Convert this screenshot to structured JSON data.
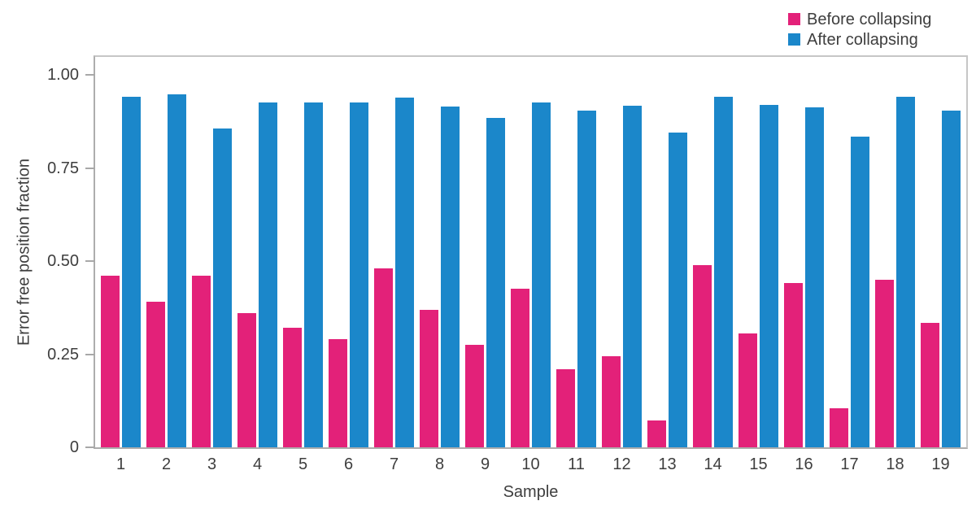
{
  "colors": {
    "before": "#e32179",
    "after": "#1b87ca",
    "text": "#3e3e3e",
    "axis_border": "#c6c6c6",
    "tick": "#a8a8a8",
    "background": "#ffffff"
  },
  "legend": {
    "items": [
      {
        "label": "Before collapsing",
        "color": "#e32179"
      },
      {
        "label": "After collapsing",
        "color": "#1b87ca"
      }
    ]
  },
  "chart_data": {
    "type": "bar",
    "title": "",
    "xlabel": "Sample",
    "ylabel": "Error free position fraction",
    "categories": [
      "1",
      "2",
      "3",
      "4",
      "5",
      "6",
      "7",
      "8",
      "9",
      "10",
      "11",
      "12",
      "13",
      "14",
      "15",
      "16",
      "17",
      "18",
      "19"
    ],
    "series": [
      {
        "name": "Before collapsing",
        "color": "#e32179",
        "values": [
          0.46,
          0.39,
          0.46,
          0.36,
          0.32,
          0.29,
          0.48,
          0.37,
          0.275,
          0.425,
          0.21,
          0.245,
          0.073,
          0.49,
          0.305,
          0.44,
          0.105,
          0.45,
          0.335
        ]
      },
      {
        "name": "After collapsing",
        "color": "#1b87ca",
        "values": [
          0.94,
          0.947,
          0.856,
          0.926,
          0.926,
          0.926,
          0.938,
          0.915,
          0.885,
          0.926,
          0.905,
          0.917,
          0.845,
          0.941,
          0.92,
          0.913,
          0.835,
          0.941,
          0.905
        ]
      }
    ],
    "ylim": [
      0,
      1.05
    ],
    "yticks": [
      {
        "value": 0.0,
        "label": "0"
      },
      {
        "value": 0.25,
        "label": "0.25"
      },
      {
        "value": 0.5,
        "label": "0.50"
      },
      {
        "value": 0.75,
        "label": "0.75"
      },
      {
        "value": 1.0,
        "label": "1.00"
      }
    ],
    "grid": false,
    "legend_position": "top-right"
  }
}
